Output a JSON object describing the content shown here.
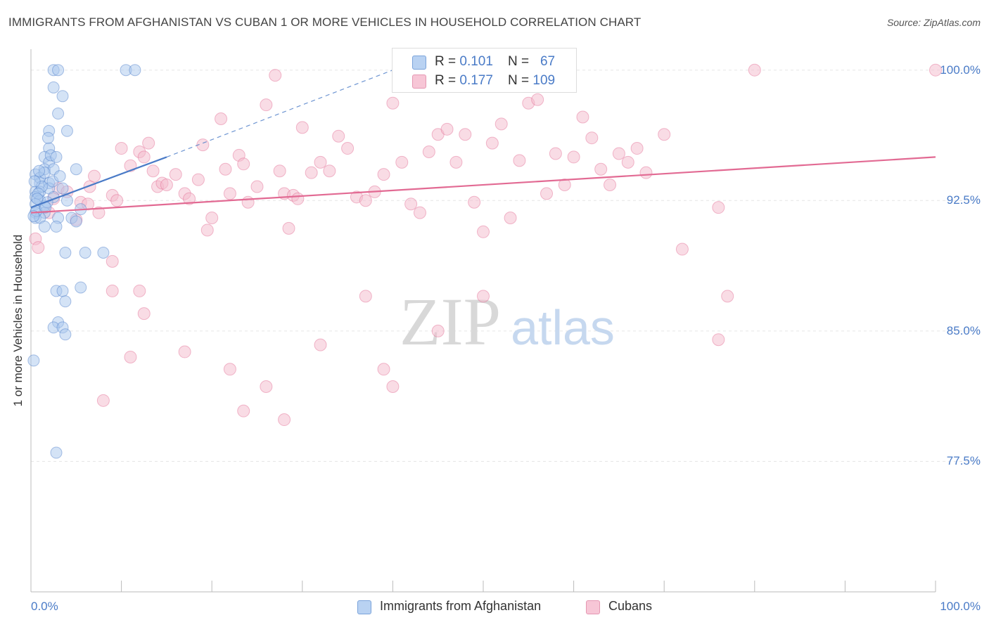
{
  "chart_data": {
    "type": "scatter",
    "title": "IMMIGRANTS FROM AFGHANISTAN VS CUBAN 1 OR MORE VEHICLES IN HOUSEHOLD CORRELATION CHART",
    "source": "Source: ZipAtlas.com",
    "xlabel": "",
    "ylabel": "1 or more Vehicles in Household",
    "xlim": [
      0,
      100
    ],
    "ylim": [
      70.0,
      101.2
    ],
    "x_tick_labels": [
      {
        "value": 0,
        "label": "0.0%"
      },
      {
        "value": 100,
        "label": "100.0%"
      }
    ],
    "y_tick_labels": [
      {
        "value": 100.0,
        "label": "100.0%"
      },
      {
        "value": 92.5,
        "label": "92.5%"
      },
      {
        "value": 85.0,
        "label": "85.0%"
      },
      {
        "value": 77.5,
        "label": "77.5%"
      }
    ],
    "watermark": {
      "zip": "ZIP",
      "atlas": "atlas"
    },
    "legend": {
      "r_label": "R =",
      "n_label": "N =",
      "entries": [
        {
          "name": "Immigrants from Afghanistan",
          "r": "0.101",
          "n": "67"
        },
        {
          "name": "Cubans",
          "r": "0.177",
          "n": "109"
        }
      ]
    },
    "series": [
      {
        "name": "Immigrants from Afghanistan",
        "color": "#4a7bc7",
        "fill": "#a9c7ee",
        "trend": {
          "x0": 0,
          "y0": 92.1,
          "x1": 15,
          "y1": 95.0,
          "dash_to_x": 40,
          "dash_to_y": 100.0
        },
        "points": [
          [
            2.5,
            100
          ],
          [
            3,
            100
          ],
          [
            10.5,
            100
          ],
          [
            11.5,
            100
          ],
          [
            2.5,
            99
          ],
          [
            3.5,
            98.5
          ],
          [
            3,
            97.5
          ],
          [
            2,
            96.5
          ],
          [
            4,
            96.5
          ],
          [
            2,
            95.5
          ],
          [
            1.5,
            95
          ],
          [
            2,
            94.7
          ],
          [
            1.5,
            94.3
          ],
          [
            2.5,
            94.3
          ],
          [
            5,
            94.3
          ],
          [
            0.5,
            94
          ],
          [
            1,
            93.5
          ],
          [
            2,
            93.5
          ],
          [
            0.5,
            93
          ],
          [
            1,
            93
          ],
          [
            2,
            93.2
          ],
          [
            3.5,
            93.2
          ],
          [
            0.5,
            92.7
          ],
          [
            1,
            92.5
          ],
          [
            2.5,
            92.7
          ],
          [
            4,
            92.5
          ],
          [
            0.5,
            92.3
          ],
          [
            1.5,
            92.2
          ],
          [
            0.5,
            91.8
          ],
          [
            1.5,
            91.8
          ],
          [
            5.5,
            92
          ],
          [
            0.5,
            91.5
          ],
          [
            1,
            91.5
          ],
          [
            3,
            91.5
          ],
          [
            4.5,
            91.5
          ],
          [
            5,
            91.3
          ],
          [
            1.5,
            91
          ],
          [
            2.8,
            91
          ],
          [
            3.8,
            89.5
          ],
          [
            6,
            89.5
          ],
          [
            8,
            89.5
          ],
          [
            2.8,
            87.3
          ],
          [
            3.5,
            87.3
          ],
          [
            5.5,
            87.5
          ],
          [
            3.8,
            86.7
          ],
          [
            3,
            85.5
          ],
          [
            2.5,
            85.2
          ],
          [
            3.5,
            85.2
          ],
          [
            3.8,
            84.8
          ],
          [
            0.3,
            83.3
          ],
          [
            2.8,
            78
          ],
          [
            1,
            93.8
          ],
          [
            1.5,
            94.1
          ],
          [
            2.2,
            95.1
          ],
          [
            2.8,
            95
          ],
          [
            1.2,
            93.3
          ],
          [
            0.8,
            92.9
          ],
          [
            1.8,
            92.4
          ],
          [
            0.6,
            91.9
          ],
          [
            1.6,
            92.1
          ],
          [
            2.4,
            93.6
          ],
          [
            0.4,
            93.6
          ],
          [
            0.9,
            94.2
          ],
          [
            3.2,
            93.9
          ],
          [
            1.9,
            96.1
          ],
          [
            0.7,
            92.6
          ],
          [
            0.3,
            91.6
          ]
        ]
      },
      {
        "name": "Cubans",
        "color": "#e26a93",
        "fill": "#f4b9cc",
        "trend": {
          "x0": 0,
          "y0": 91.8,
          "x1": 100,
          "y1": 95.0
        },
        "points": [
          [
            0.5,
            90.3
          ],
          [
            0.8,
            89.8
          ],
          [
            2,
            91.8
          ],
          [
            2.5,
            92.6
          ],
          [
            3,
            93.2
          ],
          [
            4,
            93.0
          ],
          [
            5,
            91.4
          ],
          [
            5.5,
            92.4
          ],
          [
            6.3,
            92.3
          ],
          [
            6.5,
            93.3
          ],
          [
            7,
            93.9
          ],
          [
            7.5,
            91.8
          ],
          [
            9,
            92.8
          ],
          [
            9.5,
            92.5
          ],
          [
            10,
            95.5
          ],
          [
            11,
            94.5
          ],
          [
            12,
            95.3
          ],
          [
            12.5,
            95
          ],
          [
            13,
            95.8
          ],
          [
            13.5,
            94.2
          ],
          [
            14,
            93.3
          ],
          [
            14.5,
            93.5
          ],
          [
            15,
            93.4
          ],
          [
            16,
            94
          ],
          [
            17,
            92.9
          ],
          [
            17.5,
            92.6
          ],
          [
            18.5,
            93.7
          ],
          [
            19,
            95.7
          ],
          [
            19.5,
            90.8
          ],
          [
            20,
            91.5
          ],
          [
            21,
            97.2
          ],
          [
            21.5,
            94.3
          ],
          [
            22,
            92.9
          ],
          [
            23,
            95.1
          ],
          [
            23.5,
            94.6
          ],
          [
            24,
            92.4
          ],
          [
            25,
            93.3
          ],
          [
            26,
            98
          ],
          [
            27,
            99.7
          ],
          [
            27.5,
            94.2
          ],
          [
            28,
            92.9
          ],
          [
            28.5,
            90.9
          ],
          [
            29,
            92.8
          ],
          [
            29.5,
            92.6
          ],
          [
            30,
            96.7
          ],
          [
            31,
            94.1
          ],
          [
            32,
            94.7
          ],
          [
            33,
            94.2
          ],
          [
            34,
            96.2
          ],
          [
            35,
            95.5
          ],
          [
            36,
            92.7
          ],
          [
            37,
            92.5
          ],
          [
            38,
            93
          ],
          [
            39,
            94
          ],
          [
            40,
            98.1
          ],
          [
            41,
            94.7
          ],
          [
            42,
            92.3
          ],
          [
            43,
            91.8
          ],
          [
            44,
            95.3
          ],
          [
            45,
            96.3
          ],
          [
            46,
            96.6
          ],
          [
            47,
            94.7
          ],
          [
            48,
            96.3
          ],
          [
            49,
            92.4
          ],
          [
            50,
            90.7
          ],
          [
            51,
            95.8
          ],
          [
            52,
            96.9
          ],
          [
            53,
            91.5
          ],
          [
            54,
            94.8
          ],
          [
            55,
            98.1
          ],
          [
            56,
            98.3
          ],
          [
            57,
            92.9
          ],
          [
            58,
            95.2
          ],
          [
            59,
            93.4
          ],
          [
            60,
            95
          ],
          [
            61,
            97.3
          ],
          [
            62,
            96.1
          ],
          [
            63,
            94.3
          ],
          [
            64,
            93.4
          ],
          [
            65,
            95.2
          ],
          [
            66,
            94.7
          ],
          [
            67,
            95.5
          ],
          [
            68,
            94.1
          ],
          [
            70,
            96.3
          ],
          [
            72,
            89.7
          ],
          [
            76,
            92.1
          ],
          [
            77,
            87.0
          ],
          [
            80,
            100
          ],
          [
            9,
            87.3
          ],
          [
            12,
            87.3
          ],
          [
            9,
            89
          ],
          [
            11,
            83.5
          ],
          [
            17,
            83.8
          ],
          [
            22,
            82.8
          ],
          [
            23.5,
            80.4
          ],
          [
            26,
            81.8
          ],
          [
            28,
            79.9
          ],
          [
            32,
            84.2
          ],
          [
            37,
            87
          ],
          [
            39,
            82.8
          ],
          [
            40,
            81.8
          ],
          [
            45,
            85
          ],
          [
            50,
            87
          ],
          [
            12.5,
            86
          ],
          [
            8,
            81
          ],
          [
            76,
            84.5
          ],
          [
            100,
            100
          ]
        ]
      }
    ]
  }
}
